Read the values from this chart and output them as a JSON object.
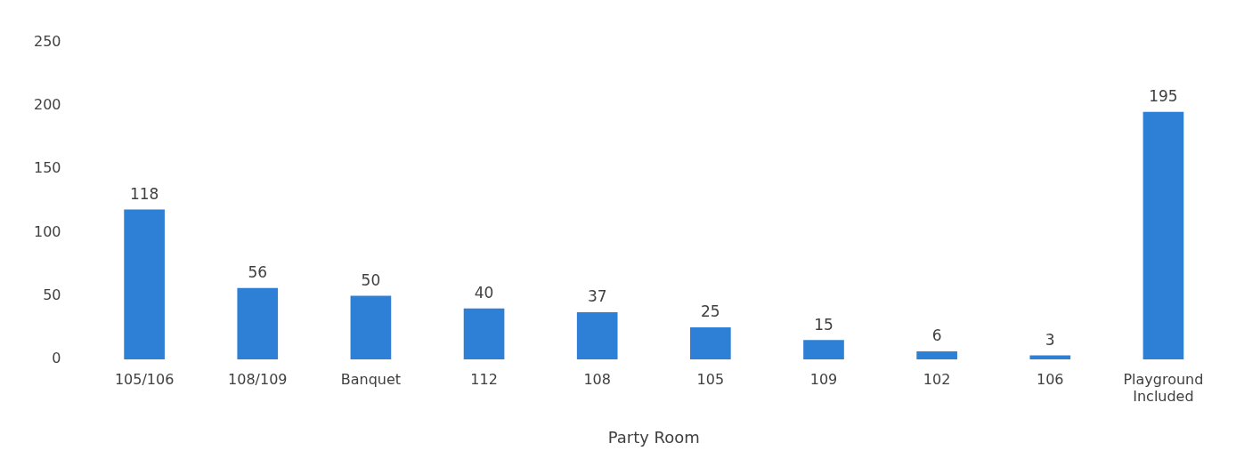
{
  "chart_data": {
    "type": "bar",
    "xlabel": "Party Room",
    "categories": [
      "105/106",
      "108/109",
      "Banquet",
      "112",
      "108",
      "105",
      "109",
      "102",
      "106",
      "Playground Included"
    ],
    "values": [
      118,
      56,
      50,
      40,
      37,
      25,
      15,
      6,
      3,
      195
    ],
    "color": "#2e7fd6",
    "ylim": [
      0,
      250
    ],
    "yticks": [
      0,
      50,
      100,
      150,
      200,
      250
    ],
    "grid": false,
    "data_labels": true
  }
}
